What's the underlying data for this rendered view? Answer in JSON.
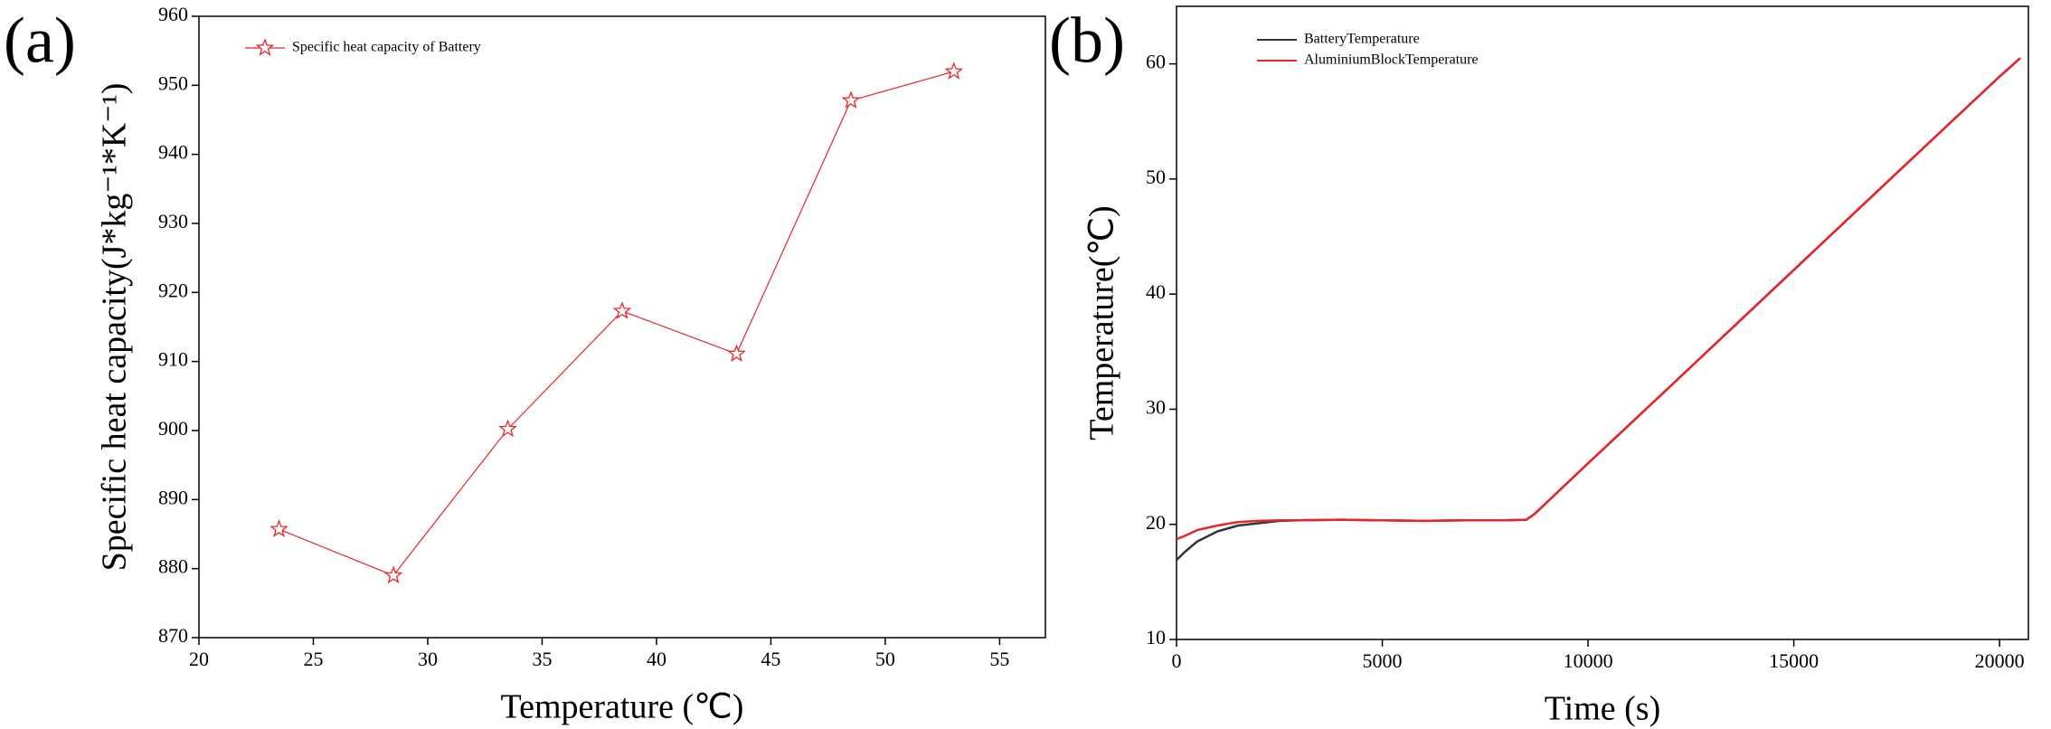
{
  "chart_data": [
    {
      "type": "line",
      "panel_label": "(a)",
      "xlabel": "Temperature (℃)",
      "ylabel": "Specific heat capacity(J*kg⁻¹*K⁻¹)",
      "marker": "star",
      "legend": "upper left",
      "x": [
        23.5,
        28.5,
        33.5,
        38.5,
        43.5,
        48.5,
        53
      ],
      "series": [
        {
          "name": "Specific heat capacity of Battery",
          "color": "#e8262a",
          "values": [
            885.7,
            879,
            900.2,
            917.3,
            911.1,
            947.8,
            952
          ]
        }
      ],
      "xlim": [
        20,
        57
      ],
      "xticks": [
        20,
        25,
        30,
        35,
        40,
        45,
        50,
        55
      ],
      "ylim": [
        870,
        960
      ],
      "yticks": [
        870,
        880,
        890,
        900,
        910,
        920,
        930,
        940,
        950,
        960
      ]
    },
    {
      "type": "line",
      "panel_label": "(b)",
      "xlabel": "Time (s)",
      "ylabel": "Temperature(℃)",
      "legend": "upper left",
      "x": [
        0,
        200,
        500,
        1000,
        1500,
        2000,
        2500,
        3000,
        4000,
        5000,
        6000,
        7000,
        8000,
        8500,
        8700,
        10000,
        12000,
        15000,
        18000,
        20000,
        20500
      ],
      "series": [
        {
          "name": "BatteryTemperature",
          "color": "#333333",
          "values": [
            16.9,
            17.6,
            18.5,
            19.4,
            19.9,
            20.1,
            20.3,
            20.35,
            20.4,
            20.35,
            20.3,
            20.35,
            20.35,
            20.4,
            20.9,
            25.3,
            32.0,
            42.1,
            52.2,
            58.9,
            60.5
          ]
        },
        {
          "name": "AluminiumBlockTemperature",
          "color": "#e8262a",
          "values": [
            18.7,
            19.0,
            19.5,
            19.9,
            20.2,
            20.3,
            20.35,
            20.35,
            20.4,
            20.35,
            20.3,
            20.35,
            20.35,
            20.4,
            20.9,
            25.3,
            32.0,
            42.1,
            52.2,
            58.9,
            60.5
          ]
        }
      ],
      "xlim": [
        0,
        20700
      ],
      "xticks": [
        0,
        5000,
        10000,
        15000,
        20000
      ],
      "ylim": [
        10,
        65
      ],
      "yticks": [
        10,
        20,
        30,
        40,
        50,
        60
      ]
    }
  ]
}
